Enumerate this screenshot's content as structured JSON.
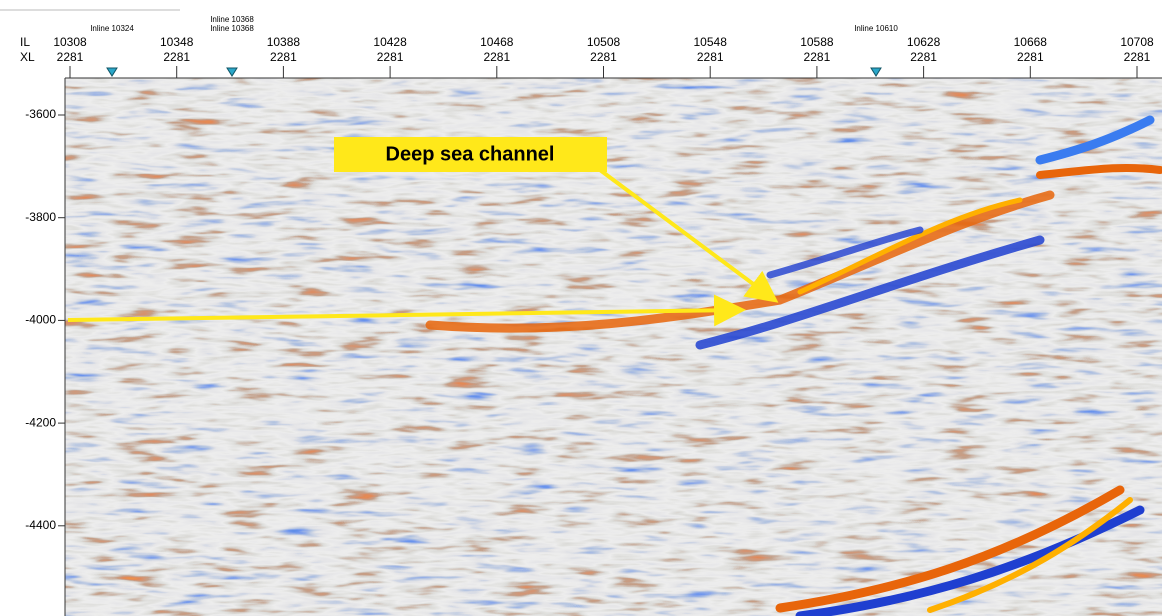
{
  "axis": {
    "il_label": "IL",
    "xl_label": "XL",
    "ticks": [
      {
        "il": 10308,
        "xl": 2281
      },
      {
        "il": 10348,
        "xl": 2281
      },
      {
        "il": 10388,
        "xl": 2281
      },
      {
        "il": 10428,
        "xl": 2281
      },
      {
        "il": 10468,
        "xl": 2281
      },
      {
        "il": 10508,
        "xl": 2281
      },
      {
        "il": 10548,
        "xl": 2281
      },
      {
        "il": 10588,
        "xl": 2281
      },
      {
        "il": 10628,
        "xl": 2281
      },
      {
        "il": 10668,
        "xl": 2281
      },
      {
        "il": 10708,
        "xl": 2281
      }
    ],
    "depth_ticks": [
      -3600,
      -3800,
      -4000,
      -4200,
      -4400
    ]
  },
  "markers": [
    {
      "labels": [
        "Inline 10324"
      ]
    },
    {
      "labels": [
        "Inline 10368",
        "Inline 10368"
      ]
    },
    {
      "labels": [
        "Inline 10610"
      ]
    }
  ],
  "annotation": "Deep sea channel"
}
